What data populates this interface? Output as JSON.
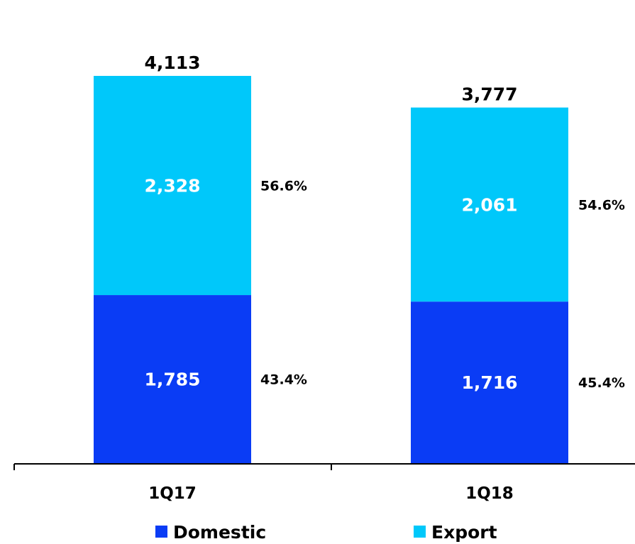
{
  "chart_data": {
    "type": "bar",
    "stacked": true,
    "categories": [
      "1Q17",
      "1Q18"
    ],
    "series": [
      {
        "name": "Domestic",
        "values": [
          1785,
          1716
        ],
        "labels": [
          "1,785",
          "1,716"
        ],
        "share_labels": [
          "43.4%",
          "45.4%"
        ],
        "color": "#0a3cf5"
      },
      {
        "name": "Export",
        "values": [
          2328,
          2061
        ],
        "labels": [
          "2,328",
          "2,061"
        ],
        "share_labels": [
          "56.6%",
          "54.6%"
        ],
        "color": "#00c8fa"
      }
    ],
    "totals": [
      4113,
      3777
    ],
    "total_labels": [
      "4,113",
      "3,777"
    ],
    "ylim": [
      0,
      4500
    ],
    "legend": "bottom",
    "grid": false,
    "title": "",
    "xlabel": "",
    "ylabel": ""
  }
}
